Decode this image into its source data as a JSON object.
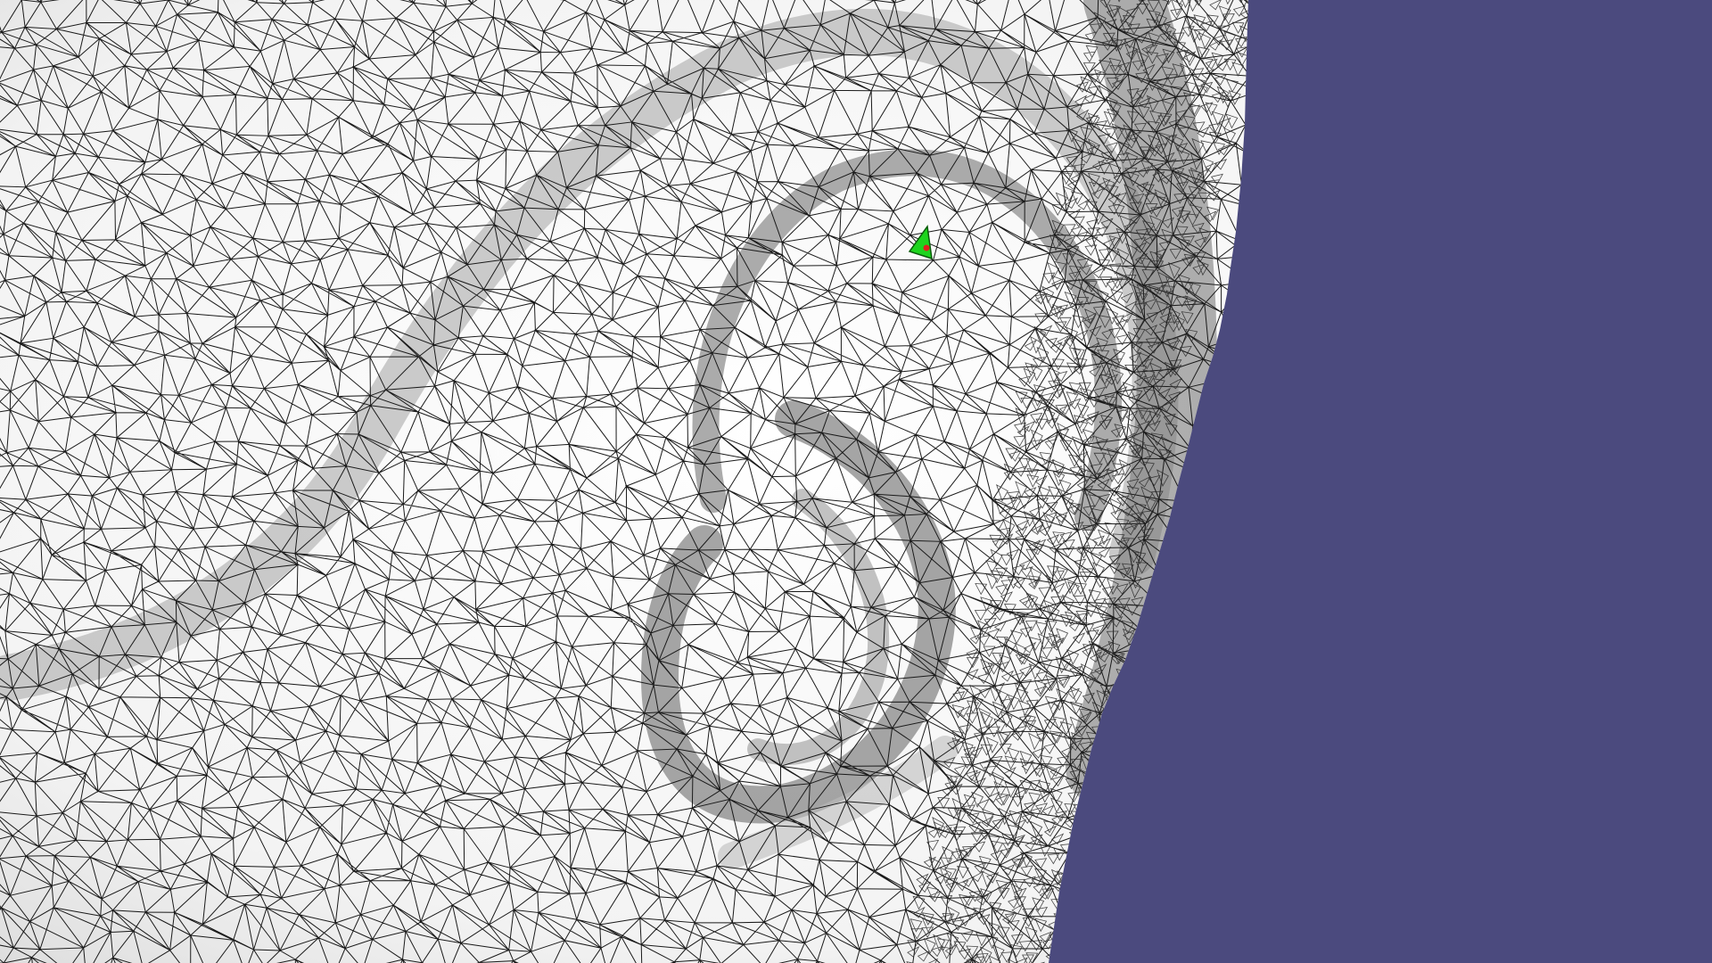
{
  "viewport": {
    "background_color": "#4b4a7e",
    "surface_color": "#ffffff",
    "edge_color": "#1a1a1a",
    "shadow_color": "#8a8a8a"
  },
  "mesh": {
    "render_mode": "surface-with-edges",
    "subject": "ear-region"
  },
  "selection": {
    "highlighted_cell_color": "#1ed41e",
    "picked_point_color": "#e0201e"
  }
}
